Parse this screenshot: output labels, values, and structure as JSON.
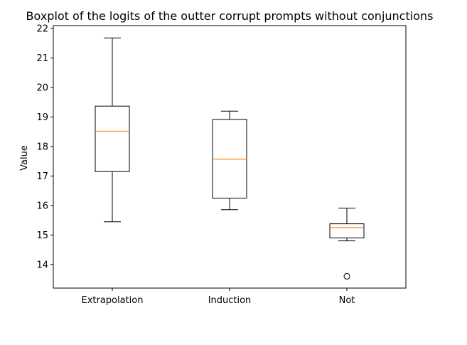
{
  "chart_data": {
    "type": "boxplot",
    "title": "Boxplot of the logits of the outter corrupt prompts without conjunctions",
    "xlabel": "",
    "ylabel": "Value",
    "ylim": [
      13.2,
      22.1
    ],
    "yticks": [
      14,
      15,
      16,
      17,
      18,
      19,
      20,
      21,
      22
    ],
    "grid": false,
    "categories": [
      "Extrapolation",
      "Induction",
      "Not"
    ],
    "boxes": [
      {
        "category": "Extrapolation",
        "whisker_low": 15.45,
        "q1": 17.15,
        "median": 18.52,
        "q3": 19.37,
        "whisker_high": 21.68,
        "outliers": []
      },
      {
        "category": "Induction",
        "whisker_low": 15.86,
        "q1": 16.25,
        "median": 17.57,
        "q3": 18.92,
        "whisker_high": 19.2,
        "outliers": []
      },
      {
        "category": "Not",
        "whisker_low": 14.8,
        "q1": 14.9,
        "median": 15.25,
        "q3": 15.38,
        "whisker_high": 15.91,
        "outliers": [
          13.6
        ]
      }
    ],
    "colors": {
      "box": "#000000",
      "median": "#ff7f0e",
      "axis": "#000000"
    }
  }
}
